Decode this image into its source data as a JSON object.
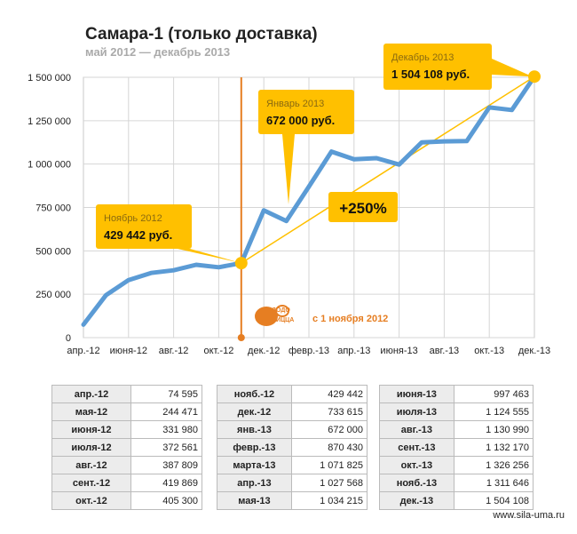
{
  "title": "Самара-1 (только доставка)",
  "subtitle": "май 2012 — декабрь 2013",
  "footer": "www.sila-uma.ru",
  "chart_data": {
    "type": "line",
    "title": "Самара-1 (только доставка)",
    "subtitle": "май 2012 — декабрь 2013",
    "ylim": [
      0,
      1500000
    ],
    "yticks": [
      {
        "value": 0,
        "label": "0"
      },
      {
        "value": 250000,
        "label": "250 000"
      },
      {
        "value": 500000,
        "label": "500 000"
      },
      {
        "value": 750000,
        "label": "750 000"
      },
      {
        "value": 1000000,
        "label": "1 000 000"
      },
      {
        "value": 1250000,
        "label": "1 250 000"
      },
      {
        "value": 1500000,
        "label": "1 500 000"
      }
    ],
    "xticks": [
      "апр.-12",
      "июня-12",
      "авг.-12",
      "окт.-12",
      "дек.-12",
      "февр.-13",
      "апр.-13",
      "июня-13",
      "авг.-13",
      "окт.-13",
      "дек.-13"
    ],
    "grid": true,
    "series_color": "#5b9bd5",
    "accent_color": "#ffc000",
    "marker_color": "#e67e22",
    "values": [
      74595,
      244471,
      331980,
      372561,
      387809,
      419869,
      405300,
      429442,
      733615,
      672000,
      870430,
      1071825,
      1027568,
      1034215,
      997463,
      1124555,
      1130990,
      1132170,
      1326256,
      1311646,
      1504108
    ],
    "callouts": [
      {
        "month": "Ноябрь 2012",
        "value": "429 442 руб.",
        "index": 7
      },
      {
        "month": "Январь 2013",
        "value": "672 000 руб.",
        "index": 9
      },
      {
        "month": "Декабрь 2013",
        "value": "1 504 108 руб.",
        "index": 20
      }
    ],
    "growth_label": "+250%",
    "event_label": "с 1 ноября 2012",
    "event_index": 7,
    "logo_text": "ДОДО ПИЦЦА"
  },
  "tables": [
    [
      {
        "month": "апр.-12",
        "value": "74 595"
      },
      {
        "month": "мая-12",
        "value": "244 471"
      },
      {
        "month": "июня-12",
        "value": "331 980"
      },
      {
        "month": "июля-12",
        "value": "372 561"
      },
      {
        "month": "авг.-12",
        "value": "387 809"
      },
      {
        "month": "сент.-12",
        "value": "419 869"
      },
      {
        "month": "окт.-12",
        "value": "405 300"
      }
    ],
    [
      {
        "month": "нояб.-12",
        "value": "429 442"
      },
      {
        "month": "дек.-12",
        "value": "733 615"
      },
      {
        "month": "янв.-13",
        "value": "672 000"
      },
      {
        "month": "февр.-13",
        "value": "870 430"
      },
      {
        "month": "марта-13",
        "value": "1 071 825"
      },
      {
        "month": "апр.-13",
        "value": "1 027 568"
      },
      {
        "month": "мая-13",
        "value": "1 034 215"
      }
    ],
    [
      {
        "month": "июня-13",
        "value": "997 463"
      },
      {
        "month": "июля-13",
        "value": "1 124 555"
      },
      {
        "month": "авг.-13",
        "value": "1 130 990"
      },
      {
        "month": "сент.-13",
        "value": "1 132 170"
      },
      {
        "month": "окт.-13",
        "value": "1 326 256"
      },
      {
        "month": "нояб.-13",
        "value": "1 311 646"
      },
      {
        "month": "дек.-13",
        "value": "1 504 108"
      }
    ]
  ]
}
